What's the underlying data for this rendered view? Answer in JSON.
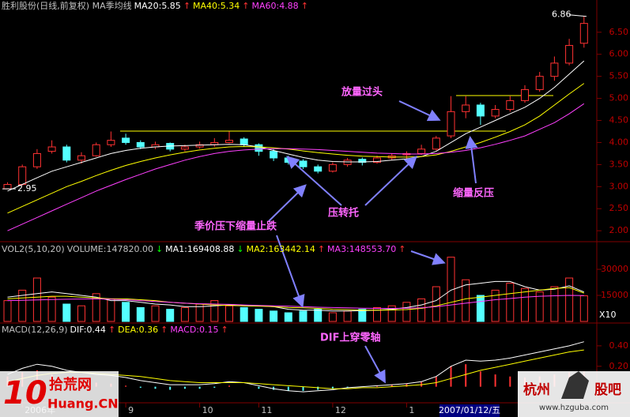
{
  "chart_data": [
    {
      "type": "candlestick",
      "title": "胜利股份(日线,前复权) MA季均线",
      "ylim": [
        1.77,
        6.98
      ],
      "yticks": [
        {
          "value": 2,
          "label": "2.00"
        },
        {
          "value": 2.5,
          "label": "2.50"
        },
        {
          "value": 3,
          "label": "3.00"
        },
        {
          "value": 3.5,
          "label": "3.50"
        },
        {
          "value": 4,
          "label": "4.00"
        },
        {
          "value": 4.5,
          "label": "4.50"
        },
        {
          "value": 5,
          "label": "5.00"
        },
        {
          "value": 5.5,
          "label": "5.50"
        },
        {
          "value": 6,
          "label": "6.00"
        },
        {
          "value": 6.5,
          "label": "6.50"
        }
      ],
      "up_color": "#ff3232",
      "down_color": "#54ffff",
      "ohlc": [
        [
          2.95,
          3.1,
          2.95,
          3.05
        ],
        [
          3.05,
          3.5,
          3.02,
          3.45
        ],
        [
          3.45,
          3.85,
          3.4,
          3.75
        ],
        [
          3.8,
          4.05,
          3.75,
          3.9
        ],
        [
          3.9,
          3.95,
          3.55,
          3.6
        ],
        [
          3.6,
          3.78,
          3.52,
          3.7
        ],
        [
          3.7,
          4.0,
          3.68,
          3.95
        ],
        [
          3.95,
          4.25,
          3.9,
          4.05
        ],
        [
          4.1,
          4.2,
          3.95,
          4.0
        ],
        [
          4.0,
          4.05,
          3.85,
          3.9
        ],
        [
          3.9,
          4.02,
          3.85,
          3.95
        ],
        [
          3.98,
          4.0,
          3.8,
          3.85
        ],
        [
          3.85,
          3.95,
          3.8,
          3.9
        ],
        [
          3.9,
          4.02,
          3.86,
          3.95
        ],
        [
          3.95,
          4.1,
          3.9,
          4.0
        ],
        [
          4.0,
          4.25,
          3.98,
          4.05
        ],
        [
          4.08,
          4.12,
          3.9,
          3.95
        ],
        [
          3.95,
          3.98,
          3.7,
          3.8
        ],
        [
          3.8,
          3.85,
          3.58,
          3.65
        ],
        [
          3.65,
          3.7,
          3.5,
          3.55
        ],
        [
          3.58,
          3.62,
          3.4,
          3.45
        ],
        [
          3.45,
          3.5,
          3.3,
          3.35
        ],
        [
          3.35,
          3.55,
          3.32,
          3.5
        ],
        [
          3.5,
          3.65,
          3.45,
          3.6
        ],
        [
          3.62,
          3.66,
          3.48,
          3.55
        ],
        [
          3.55,
          3.7,
          3.52,
          3.65
        ],
        [
          3.65,
          3.75,
          3.6,
          3.7
        ],
        [
          3.72,
          3.8,
          3.62,
          3.75
        ],
        [
          3.75,
          3.95,
          3.72,
          3.85
        ],
        [
          3.85,
          4.15,
          3.82,
          4.1
        ],
        [
          4.15,
          5.05,
          4.1,
          4.7
        ],
        [
          4.7,
          5.05,
          4.55,
          4.85
        ],
        [
          4.85,
          4.9,
          4.4,
          4.6
        ],
        [
          4.6,
          4.85,
          4.55,
          4.75
        ],
        [
          4.75,
          5.05,
          4.7,
          4.95
        ],
        [
          4.95,
          5.3,
          4.9,
          5.2
        ],
        [
          5.2,
          5.6,
          5.15,
          5.5
        ],
        [
          5.5,
          5.95,
          5.4,
          5.8
        ],
        [
          5.8,
          6.35,
          5.75,
          6.2
        ],
        [
          6.25,
          6.86,
          6.15,
          6.7
        ]
      ],
      "series": [
        {
          "name": "MA20:5.85",
          "trend": "↑",
          "color": "#ffffff",
          "values": [
            2.9,
            3.05,
            3.2,
            3.35,
            3.45,
            3.55,
            3.65,
            3.75,
            3.82,
            3.87,
            3.9,
            3.92,
            3.93,
            3.94,
            3.95,
            3.96,
            3.95,
            3.9,
            3.82,
            3.74,
            3.66,
            3.6,
            3.57,
            3.56,
            3.56,
            3.57,
            3.6,
            3.63,
            3.68,
            3.8,
            4.0,
            4.2,
            4.35,
            4.5,
            4.65,
            4.8,
            5.0,
            5.25,
            5.55,
            5.85
          ]
        },
        {
          "name": "MA40:5.34",
          "trend": "↑",
          "color": "#ffff00",
          "values": [
            2.4,
            2.55,
            2.7,
            2.85,
            3.0,
            3.12,
            3.25,
            3.37,
            3.48,
            3.57,
            3.65,
            3.72,
            3.78,
            3.83,
            3.87,
            3.9,
            3.91,
            3.9,
            3.88,
            3.85,
            3.81,
            3.77,
            3.74,
            3.71,
            3.69,
            3.68,
            3.67,
            3.67,
            3.68,
            3.72,
            3.8,
            3.9,
            4.0,
            4.12,
            4.25,
            4.4,
            4.6,
            4.85,
            5.1,
            5.34
          ]
        },
        {
          "name": "MA60:4.88",
          "trend": "↑",
          "color": "#ff40ff",
          "values": [
            2.0,
            2.15,
            2.3,
            2.45,
            2.6,
            2.75,
            2.9,
            3.03,
            3.16,
            3.28,
            3.4,
            3.5,
            3.6,
            3.68,
            3.75,
            3.8,
            3.83,
            3.85,
            3.86,
            3.86,
            3.85,
            3.84,
            3.82,
            3.8,
            3.78,
            3.76,
            3.75,
            3.74,
            3.74,
            3.75,
            3.78,
            3.82,
            3.88,
            3.96,
            4.05,
            4.15,
            4.3,
            4.45,
            4.65,
            4.88
          ]
        }
      ],
      "high_label": 6.86,
      "low_label": 2.95,
      "annotations": [
        "放量过头",
        "缩量反压",
        "压转托",
        "季价压下缩量止跌"
      ]
    },
    {
      "type": "volume",
      "title": "VOL2(5,10,20)",
      "value_name": "VOLUME:147820.00",
      "value_trend": "↓",
      "unit_label": "X10",
      "ylim": [
        0,
        43200
      ],
      "yticks": [
        15000,
        30000
      ],
      "values": [
        12000,
        18000,
        25000,
        14000,
        10000,
        9000,
        16000,
        13000,
        11000,
        8000,
        9000,
        7000,
        8000,
        10000,
        12000,
        9000,
        8000,
        7000,
        6000,
        5000,
        6000,
        7000,
        5000,
        6000,
        7000,
        8000,
        9000,
        11000,
        13000,
        20000,
        37000,
        24000,
        15000,
        18000,
        22000,
        19000,
        17000,
        20000,
        25000,
        14782
      ],
      "series": [
        {
          "name": "MA1:169408.88",
          "trend": "↓",
          "color": "#ffffff",
          "values": [
            14000,
            15000,
            16000,
            17000,
            16000,
            15000,
            14000,
            12000,
            12000,
            11000,
            10000,
            9500,
            8500,
            8500,
            9000,
            9500,
            9000,
            9000,
            8500,
            7000,
            6500,
            6500,
            6000,
            6000,
            6200,
            6500,
            7000,
            8000,
            9500,
            12000,
            18000,
            21000,
            22000,
            23000,
            23000,
            20000,
            18000,
            18500,
            20500,
            16940.888
          ]
        },
        {
          "name": "MA2:163442.14",
          "trend": "↑",
          "color": "#ffff00",
          "values": [
            13000,
            13500,
            14000,
            14500,
            14500,
            14000,
            13500,
            13000,
            13000,
            12500,
            12000,
            11000,
            10500,
            10000,
            9500,
            9200,
            9000,
            8800,
            8500,
            8000,
            7800,
            7500,
            7000,
            6800,
            6500,
            6500,
            6600,
            6800,
            7500,
            9000,
            11000,
            13000,
            14000,
            15000,
            16000,
            17000,
            18000,
            19000,
            19500,
            16344.214
          ]
        },
        {
          "name": "MA3:148553.70",
          "trend": "↑",
          "color": "#ff40ff",
          "values": [
            12000,
            12200,
            12400,
            12600,
            12800,
            12900,
            13000,
            12800,
            12500,
            12000,
            11500,
            11000,
            10500,
            10200,
            10000,
            9800,
            9500,
            9200,
            9000,
            8800,
            8500,
            8200,
            8000,
            7800,
            7600,
            7500,
            7500,
            7600,
            7800,
            8500,
            9500,
            10500,
            11500,
            12500,
            13200,
            14000,
            14500,
            14800,
            15000,
            14855.37
          ]
        }
      ]
    },
    {
      "type": "macd",
      "title": "MACD(12,26,9)",
      "value_name": "MACD:0.15",
      "value_trend": "↑",
      "ylim": [
        -0.08,
        0.6
      ],
      "yticks": [
        {
          "value": 0.2,
          "label": "0.20"
        },
        {
          "value": 0.4,
          "label": "0.40"
        }
      ],
      "values": [
        0.1,
        0.14,
        0.16,
        0.12,
        0.08,
        0.05,
        0.04,
        0.03,
        0.01,
        -0.01,
        -0.02,
        -0.03,
        -0.02,
        -0.02,
        -0.01,
        0.01,
        0.0,
        -0.02,
        -0.03,
        -0.04,
        -0.04,
        -0.03,
        -0.02,
        -0.01,
        0.0,
        0.01,
        0.02,
        0.03,
        0.05,
        0.1,
        0.2,
        0.22,
        0.15,
        0.12,
        0.1,
        0.09,
        0.1,
        0.12,
        0.14,
        0.15
      ],
      "series": [
        {
          "name": "DIF:0.44",
          "trend": "↑",
          "color": "#ffffff",
          "values": [
            0.12,
            0.18,
            0.22,
            0.2,
            0.16,
            0.14,
            0.12,
            0.11,
            0.09,
            0.06,
            0.04,
            0.02,
            0.02,
            0.02,
            0.03,
            0.05,
            0.04,
            0.01,
            -0.02,
            -0.04,
            -0.05,
            -0.04,
            -0.03,
            -0.01,
            0.0,
            0.01,
            0.02,
            0.03,
            0.05,
            0.1,
            0.2,
            0.26,
            0.25,
            0.26,
            0.28,
            0.31,
            0.34,
            0.37,
            0.4,
            0.44
          ]
        },
        {
          "name": "DEA:0.36",
          "trend": "↑",
          "color": "#ffff00",
          "values": [
            0.05,
            0.08,
            0.11,
            0.13,
            0.14,
            0.14,
            0.13,
            0.12,
            0.11,
            0.1,
            0.08,
            0.06,
            0.05,
            0.04,
            0.04,
            0.04,
            0.04,
            0.03,
            0.02,
            0.01,
            0.0,
            -0.01,
            -0.02,
            -0.02,
            -0.01,
            -0.01,
            0.0,
            0.01,
            0.02,
            0.04,
            0.08,
            0.12,
            0.16,
            0.19,
            0.22,
            0.25,
            0.28,
            0.31,
            0.34,
            0.36
          ]
        }
      ],
      "categories": [
        null,
        "2006年",
        null,
        null,
        null,
        null,
        null,
        null,
        "9",
        null,
        null,
        null,
        null,
        "10",
        null,
        null,
        null,
        "11",
        null,
        null,
        null,
        null,
        "12",
        null,
        null,
        null,
        null,
        "1",
        null,
        null,
        null,
        null,
        null,
        null,
        null,
        null,
        null,
        null,
        null,
        null
      ],
      "cursor_date": "2007/01/12/五",
      "annotations": [
        "DIF上穿零轴"
      ]
    }
  ],
  "watermarks": {
    "left": {
      "logo": "10",
      "name": "拾荒网",
      "url": "Huang.CN"
    },
    "right": {
      "name1": "杭州",
      "name2": "股吧",
      "url": "www.hzguba.com"
    }
  }
}
